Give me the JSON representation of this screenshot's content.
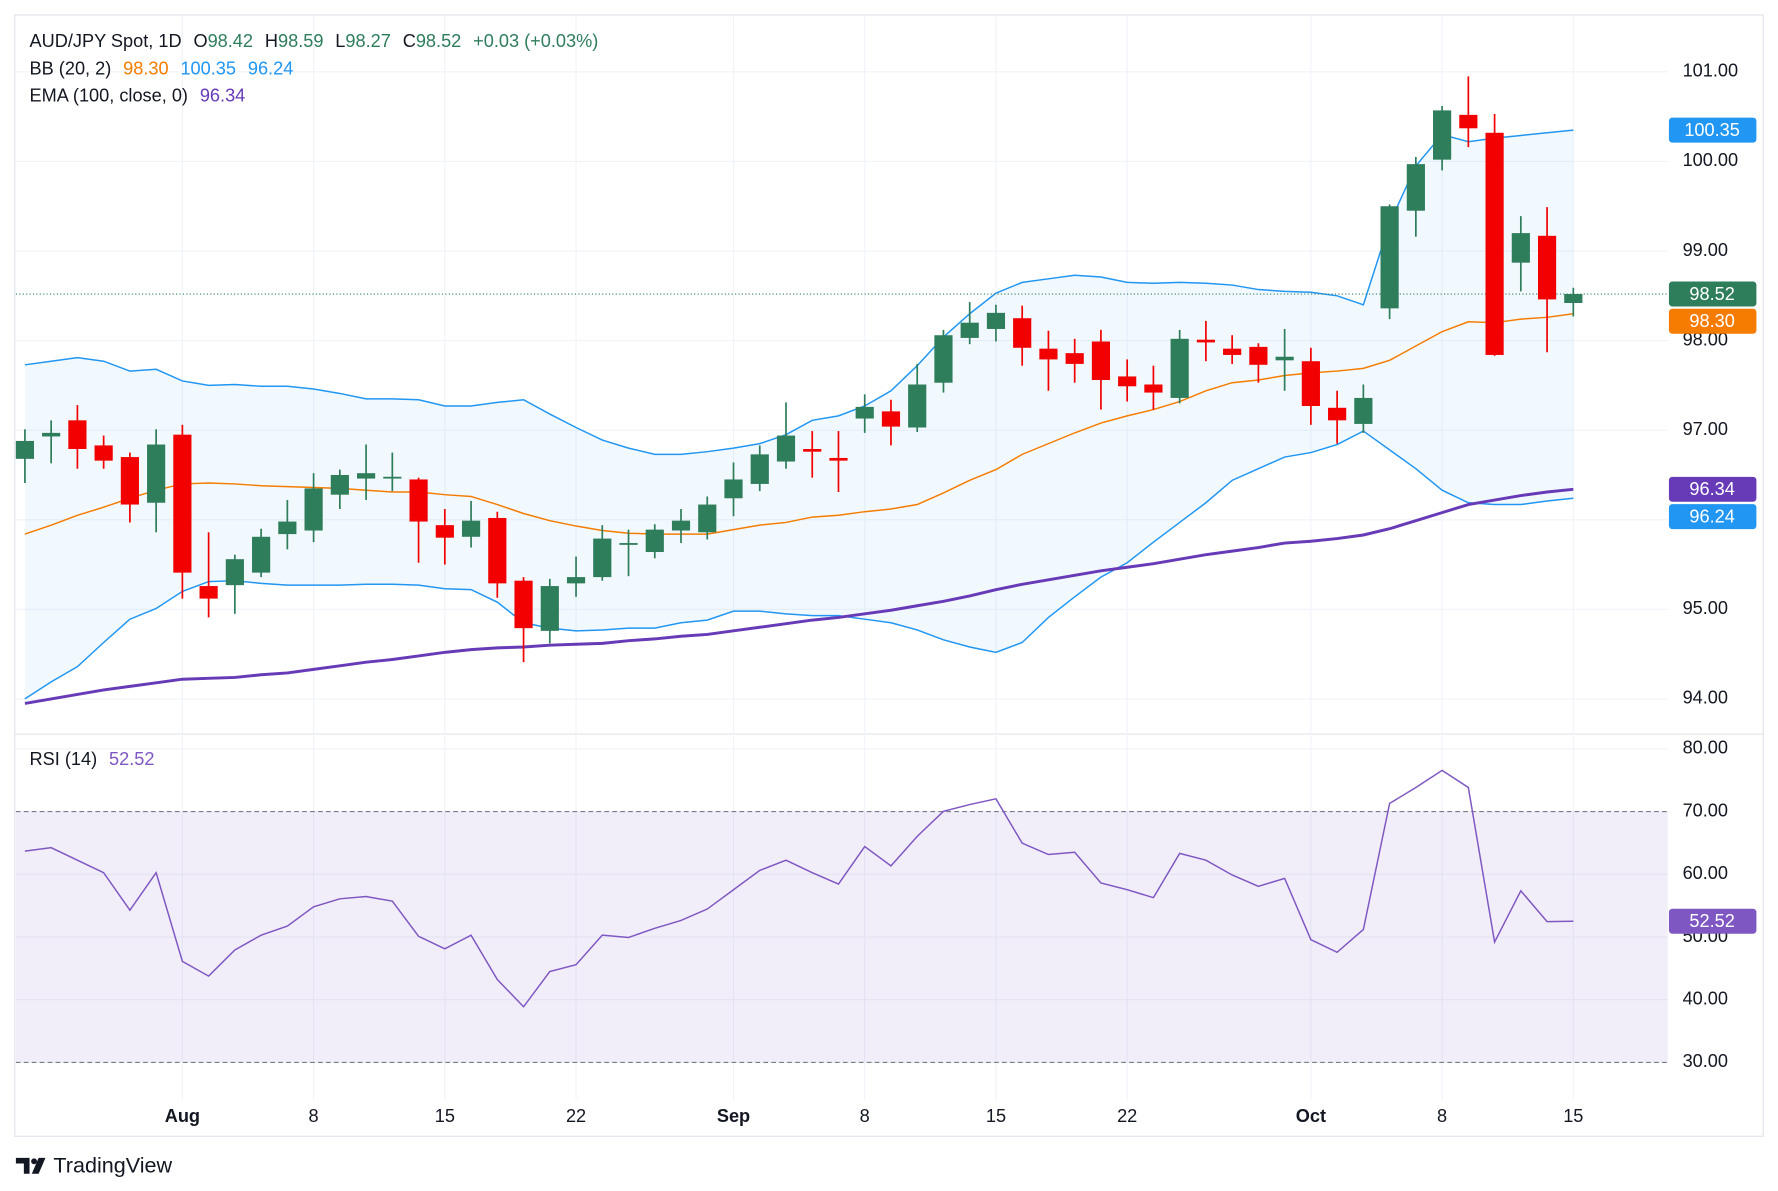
{
  "brand": "TradingView",
  "chart_data": {
    "type": "candlestick",
    "title": "AUD/JPY Spot, 1D",
    "ohlc_labels": [
      "O",
      "H",
      "L",
      "C"
    ],
    "change": "+0.03 (+0.03%)",
    "up_color": "#2e7d5b",
    "down_color": "#f20000",
    "grid": true,
    "xlim": [
      -0.3,
      62.6
    ],
    "xticks": [
      {
        "value": 6,
        "label": "Aug"
      },
      {
        "value": 11,
        "label": "8"
      },
      {
        "value": 16,
        "label": "15"
      },
      {
        "value": 21,
        "label": "22"
      },
      {
        "value": 27,
        "label": "Sep"
      },
      {
        "value": 32,
        "label": "8"
      },
      {
        "value": 37,
        "label": "15"
      },
      {
        "value": 42,
        "label": "22"
      },
      {
        "value": 49,
        "label": "Oct"
      },
      {
        "value": 54,
        "label": "8"
      },
      {
        "value": 59,
        "label": "15"
      }
    ],
    "ylim": [
      93.62,
      101.61
    ],
    "yticks": [
      {
        "value": 94,
        "label": "94.00"
      },
      {
        "value": 95,
        "label": "95.00"
      },
      {
        "value": 96,
        "label": "96.00"
      },
      {
        "value": 97,
        "label": "97.00"
      },
      {
        "value": 98,
        "label": "98.00"
      },
      {
        "value": 99,
        "label": "99.00"
      },
      {
        "value": 100,
        "label": "100.00"
      },
      {
        "value": 101,
        "label": "101.00"
      }
    ],
    "open": [
      96.68,
      96.93,
      97.11,
      96.83,
      96.7,
      96.19,
      96.95,
      95.26,
      95.27,
      95.41,
      95.84,
      95.88,
      96.28,
      96.46,
      96.46,
      96.45,
      95.94,
      95.81,
      96.02,
      95.32,
      94.76,
      95.29,
      95.36,
      95.72,
      95.64,
      95.88,
      95.86,
      96.24,
      96.4,
      96.65,
      96.79,
      96.69,
      97.13,
      97.21,
      97.03,
      97.53,
      98.03,
      98.13,
      98.25,
      97.91,
      97.86,
      97.99,
      97.6,
      97.51,
      97.36,
      98.01,
      97.91,
      97.93,
      97.78,
      97.77,
      97.25,
      97.07,
      98.36,
      99.45,
      100.02,
      100.52,
      100.32,
      98.87,
      99.17,
      98.42
    ],
    "high": [
      97.01,
      97.11,
      97.28,
      96.94,
      96.75,
      97.01,
      97.06,
      95.86,
      95.61,
      95.9,
      96.22,
      96.52,
      96.56,
      96.84,
      96.75,
      96.47,
      96.12,
      96.21,
      96.09,
      95.36,
      95.34,
      95.59,
      95.94,
      95.89,
      95.95,
      96.12,
      96.26,
      96.64,
      96.83,
      97.31,
      96.99,
      96.99,
      97.4,
      97.34,
      97.74,
      98.12,
      98.43,
      98.4,
      98.39,
      98.11,
      98.02,
      98.12,
      97.79,
      97.72,
      98.12,
      98.22,
      98.06,
      97.97,
      98.13,
      97.92,
      97.44,
      97.51,
      99.52,
      100.05,
      100.62,
      100.95,
      100.53,
      99.39,
      99.49,
      98.59
    ],
    "low": [
      96.41,
      96.63,
      96.57,
      96.57,
      95.97,
      95.86,
      95.12,
      94.91,
      94.95,
      95.36,
      95.67,
      95.75,
      96.12,
      96.22,
      96.32,
      95.52,
      95.5,
      95.69,
      95.13,
      94.41,
      94.62,
      95.14,
      95.32,
      95.37,
      95.57,
      95.74,
      95.78,
      96.04,
      96.32,
      96.57,
      96.47,
      96.31,
      96.97,
      96.83,
      96.98,
      97.42,
      97.96,
      97.99,
      97.72,
      97.44,
      97.53,
      97.23,
      97.32,
      97.23,
      97.3,
      97.77,
      97.74,
      97.53,
      97.44,
      97.06,
      96.85,
      96.97,
      98.24,
      99.16,
      99.9,
      100.16,
      97.83,
      98.55,
      97.87,
      98.27
    ],
    "close": [
      96.88,
      96.97,
      96.79,
      96.66,
      96.17,
      96.84,
      95.41,
      95.12,
      95.56,
      95.81,
      95.98,
      96.35,
      96.5,
      96.52,
      96.48,
      95.98,
      95.8,
      95.99,
      95.29,
      94.79,
      95.26,
      95.36,
      95.79,
      95.74,
      95.89,
      95.99,
      96.17,
      96.45,
      96.73,
      96.94,
      96.76,
      96.66,
      97.26,
      97.04,
      97.51,
      98.06,
      98.2,
      98.31,
      97.92,
      97.79,
      97.74,
      97.56,
      97.49,
      97.42,
      98.02,
      97.98,
      97.84,
      97.73,
      97.82,
      97.27,
      97.11,
      97.36,
      99.5,
      99.97,
      100.57,
      100.37,
      97.84,
      99.2,
      98.46,
      98.52
    ],
    "indicators": [
      {
        "label": "BB (20, 2)",
        "fill": "#2196f3",
        "lines": [
          {
            "color": "#f57c00",
            "last_label": "98.30",
            "values": [
              95.84,
              95.94,
              96.05,
              96.14,
              96.24,
              96.33,
              96.4,
              96.41,
              96.4,
              96.38,
              96.37,
              96.36,
              96.35,
              96.33,
              96.31,
              96.31,
              96.28,
              96.26,
              96.17,
              96.07,
              95.99,
              95.93,
              95.88,
              95.85,
              95.84,
              95.84,
              95.84,
              95.89,
              95.94,
              95.97,
              96.03,
              96.05,
              96.09,
              96.12,
              96.17,
              96.3,
              96.44,
              96.56,
              96.73,
              96.85,
              96.97,
              97.08,
              97.16,
              97.23,
              97.32,
              97.44,
              97.53,
              97.56,
              97.61,
              97.64,
              97.66,
              97.69,
              97.78,
              97.94,
              98.1,
              98.21,
              98.2,
              98.24,
              98.26,
              98.3
            ]
          },
          {
            "color": "#2196f3",
            "last_label": "100.35",
            "values": [
              97.73,
              97.77,
              97.81,
              97.77,
              97.66,
              97.68,
              97.55,
              97.5,
              97.51,
              97.49,
              97.49,
              97.46,
              97.41,
              97.35,
              97.35,
              97.34,
              97.27,
              97.27,
              97.31,
              97.34,
              97.18,
              97.03,
              96.89,
              96.8,
              96.73,
              96.73,
              96.76,
              96.8,
              96.85,
              96.95,
              97.11,
              97.16,
              97.27,
              97.44,
              97.72,
              98.04,
              98.3,
              98.53,
              98.65,
              98.69,
              98.73,
              98.71,
              98.65,
              98.64,
              98.65,
              98.64,
              98.62,
              98.57,
              98.55,
              98.54,
              98.5,
              98.4,
              99.31,
              99.95,
              100.3,
              100.22,
              100.26,
              100.29,
              100.32,
              100.35
            ]
          },
          {
            "color": "#2196f3",
            "last_label": "96.24",
            "values": [
              94.0,
              94.19,
              94.36,
              94.63,
              94.89,
              95.01,
              95.2,
              95.31,
              95.32,
              95.29,
              95.27,
              95.27,
              95.27,
              95.28,
              95.28,
              95.27,
              95.23,
              95.22,
              95.08,
              94.85,
              94.79,
              94.76,
              94.77,
              94.79,
              94.79,
              94.85,
              94.88,
              94.98,
              94.98,
              94.95,
              94.93,
              94.93,
              94.89,
              94.85,
              94.77,
              94.66,
              94.58,
              94.52,
              94.63,
              94.91,
              95.14,
              95.36,
              95.52,
              95.75,
              95.97,
              96.19,
              96.44,
              96.57,
              96.7,
              96.75,
              96.84,
              96.99,
              96.78,
              96.57,
              96.33,
              96.19,
              96.17,
              96.17,
              96.21,
              96.24
            ]
          }
        ]
      },
      {
        "label": "EMA (100, close, 0)",
        "lines": [
          {
            "color": "#673ab7",
            "last_label": "96.34",
            "values": [
              93.95,
              94.0,
              94.05,
              94.1,
              94.14,
              94.18,
              94.22,
              94.23,
              94.24,
              94.27,
              94.29,
              94.33,
              94.37,
              94.41,
              94.44,
              94.48,
              94.52,
              94.55,
              94.57,
              94.58,
              94.6,
              94.61,
              94.62,
              94.65,
              94.67,
              94.7,
              94.72,
              94.76,
              94.8,
              94.84,
              94.88,
              94.91,
              94.95,
              94.99,
              95.04,
              95.09,
              95.15,
              95.22,
              95.28,
              95.33,
              95.38,
              95.43,
              95.47,
              95.51,
              95.56,
              95.61,
              95.65,
              95.69,
              95.74,
              95.76,
              95.79,
              95.83,
              95.9,
              95.99,
              96.08,
              96.17,
              96.22,
              96.27,
              96.31,
              96.34
            ]
          }
        ]
      }
    ],
    "rsi": {
      "label": "RSI (14)",
      "color": "#7e57c2",
      "last_label": "52.52",
      "ylim": [
        18.59,
        82.17
      ],
      "yticks": [
        {
          "value": 30,
          "label": "30.00"
        },
        {
          "value": 40,
          "label": "40.00"
        },
        {
          "value": 50,
          "label": "50.00"
        },
        {
          "value": 60,
          "label": "60.00"
        },
        {
          "value": 70,
          "label": "70.00"
        },
        {
          "value": 80,
          "label": "80.00"
        }
      ],
      "bands": [
        70,
        30
      ],
      "values": [
        63.7,
        64.24,
        62.25,
        60.25,
        54.28,
        60.25,
        46.12,
        43.77,
        47.93,
        50.29,
        51.74,
        54.82,
        56.09,
        56.45,
        55.72,
        50.11,
        48.12,
        50.29,
        43.22,
        38.88,
        44.49,
        45.58,
        50.29,
        49.93,
        51.38,
        52.64,
        54.46,
        57.54,
        60.62,
        62.25,
        60.25,
        58.44,
        64.42,
        61.34,
        66.05,
        70.04,
        71.12,
        72.03,
        64.96,
        63.15,
        63.51,
        58.62,
        57.54,
        56.27,
        63.33,
        62.25,
        59.89,
        58.08,
        59.35,
        49.57,
        47.57,
        51.2,
        71.3,
        73.84,
        76.56,
        73.84,
        49.2,
        57.36,
        52.46,
        52.52
      ]
    }
  }
}
